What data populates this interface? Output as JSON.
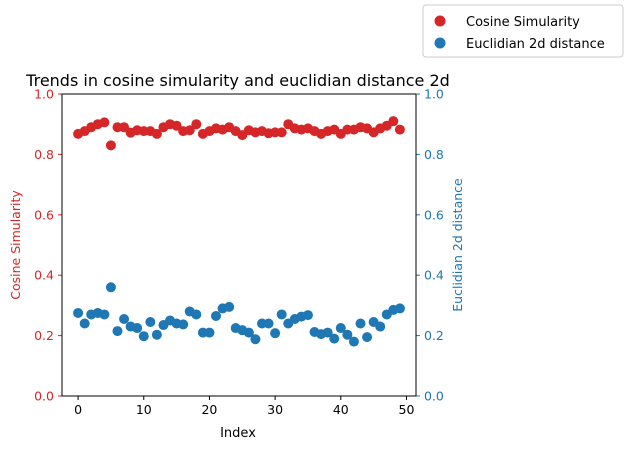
{
  "chart_data": {
    "type": "scatter",
    "title": "Trends in cosine simularity and euclidian distance 2d",
    "xlabel": "Index",
    "ylabel_left": "Cosine Simularity",
    "ylabel_right": "Euclidian 2d distance",
    "xlim": [
      -2.45,
      51.45
    ],
    "ylim_left": [
      0,
      1
    ],
    "ylim_right": [
      0,
      1
    ],
    "x_ticks": [
      0,
      10,
      20,
      30,
      40,
      50
    ],
    "y_ticks_left": [
      "0.0",
      "0.2",
      "0.4",
      "0.6",
      "0.8",
      "1.0"
    ],
    "y_ticks_right": [
      "0.0",
      "0.2",
      "0.4",
      "0.6",
      "0.8",
      "1.0"
    ],
    "grid": false,
    "legend_position": "top-right, outside plot",
    "x": [
      0,
      1,
      2,
      3,
      4,
      5,
      6,
      7,
      8,
      9,
      10,
      11,
      12,
      13,
      14,
      15,
      16,
      17,
      18,
      19,
      20,
      21,
      22,
      23,
      24,
      25,
      26,
      27,
      28,
      29,
      30,
      31,
      32,
      33,
      34,
      35,
      36,
      37,
      38,
      39,
      40,
      41,
      42,
      43,
      44,
      45,
      46,
      47,
      48,
      49
    ],
    "series": [
      {
        "name": "Cosine Simularity",
        "axis": "left",
        "color": "#d62728",
        "values": [
          0.868,
          0.877,
          0.89,
          0.9,
          0.906,
          0.83,
          0.89,
          0.89,
          0.872,
          0.88,
          0.877,
          0.877,
          0.868,
          0.89,
          0.9,
          0.895,
          0.877,
          0.88,
          0.9,
          0.868,
          0.877,
          0.886,
          0.882,
          0.89,
          0.877,
          0.864,
          0.88,
          0.873,
          0.877,
          0.87,
          0.873,
          0.873,
          0.9,
          0.886,
          0.882,
          0.886,
          0.877,
          0.868,
          0.877,
          0.882,
          0.868,
          0.882,
          0.882,
          0.89,
          0.886,
          0.873,
          0.886,
          0.895,
          0.91,
          0.882
        ]
      },
      {
        "name": "Euclidian 2d distance",
        "axis": "right",
        "color": "#1f77b4",
        "values": [
          0.275,
          0.24,
          0.27,
          0.275,
          0.27,
          0.36,
          0.215,
          0.255,
          0.23,
          0.225,
          0.198,
          0.245,
          0.203,
          0.235,
          0.25,
          0.24,
          0.237,
          0.28,
          0.27,
          0.21,
          0.21,
          0.265,
          0.29,
          0.295,
          0.225,
          0.218,
          0.21,
          0.188,
          0.24,
          0.24,
          0.208,
          0.27,
          0.24,
          0.255,
          0.263,
          0.268,
          0.212,
          0.205,
          0.21,
          0.19,
          0.225,
          0.203,
          0.18,
          0.24,
          0.195,
          0.245,
          0.23,
          0.27,
          0.285,
          0.29
        ]
      }
    ]
  },
  "colors": {
    "left_axis": "#d62728",
    "right_axis": "#1f77b4",
    "axis_line": "#000000",
    "background": "#ffffff"
  }
}
